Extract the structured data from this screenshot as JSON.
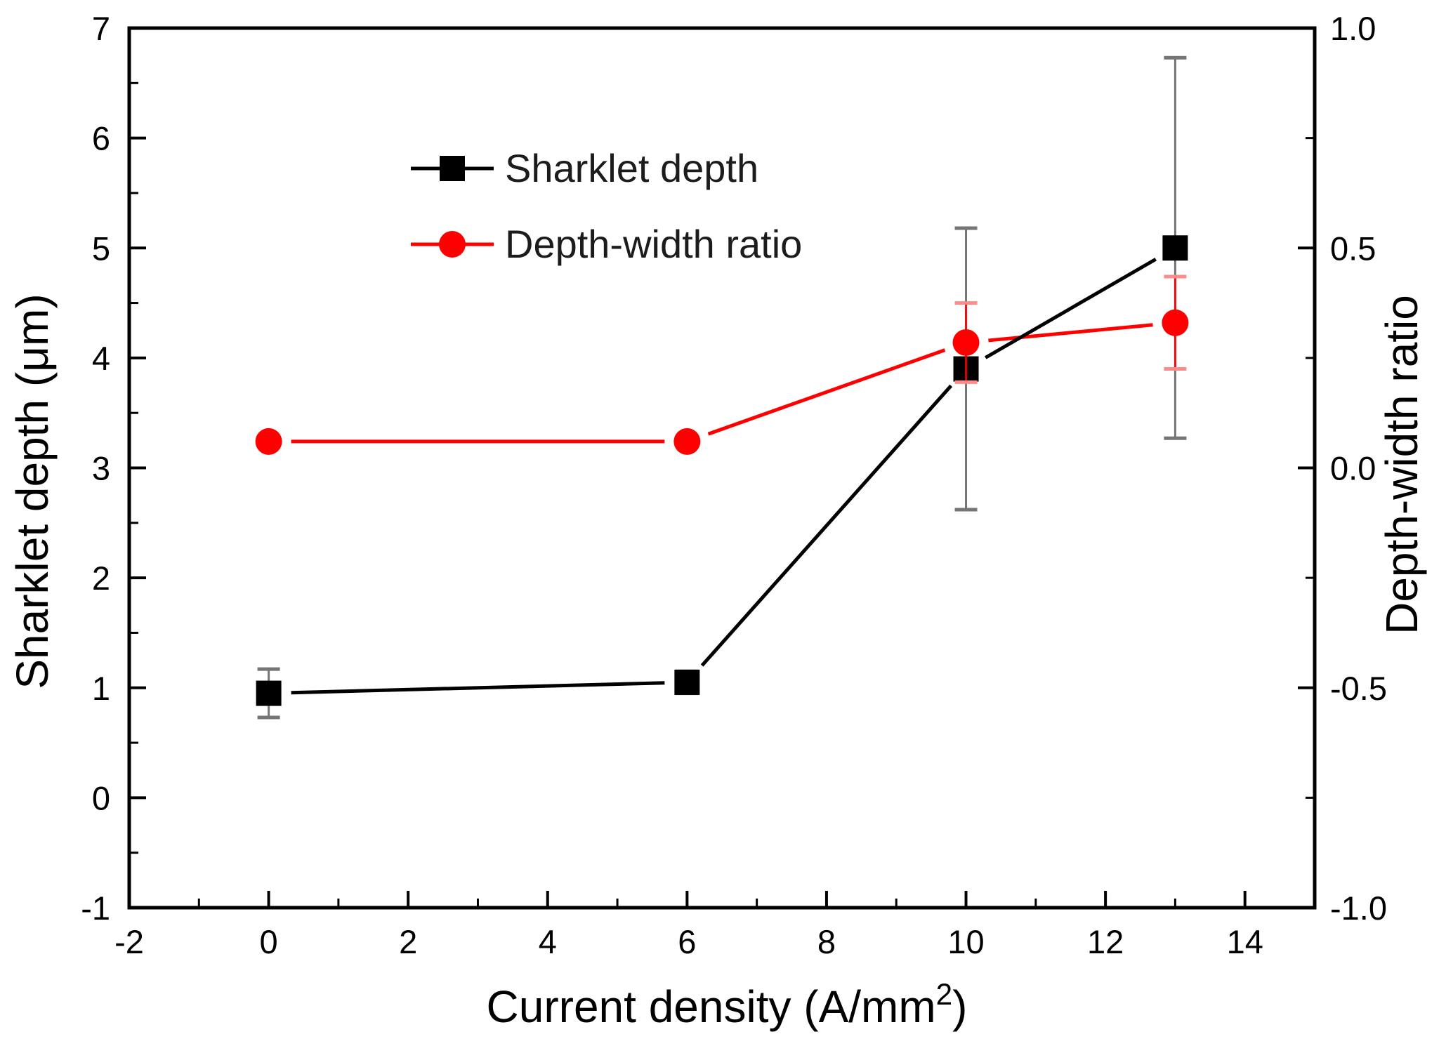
{
  "chart_data": {
    "type": "line",
    "title": "",
    "xlabel": {
      "text": "Current density (A/mm",
      "sup": "2",
      "suffix": ")"
    },
    "ylabel_left": "Sharklet depth (μm)",
    "ylabel_right": "Depth-width ratio",
    "x_axis": {
      "min": -2,
      "max": 15,
      "major_ticks": [
        -2,
        0,
        2,
        4,
        6,
        8,
        10,
        12,
        14
      ],
      "minor_step": 1
    },
    "y_axis_left": {
      "min": -1,
      "max": 7,
      "major_ticks": [
        -1,
        0,
        1,
        2,
        3,
        4,
        5,
        6,
        7
      ],
      "minor_step": 0.5
    },
    "y_axis_right": {
      "min": -1.0,
      "max": 1.0,
      "major_ticks": [
        -1.0,
        -0.5,
        0.0,
        0.5,
        1.0
      ],
      "labels": [
        "-1.0",
        "-0.5",
        "0.0",
        "0.5",
        "1.0"
      ],
      "minor_step": 0.25
    },
    "grid": false,
    "legend_position": "upper-left-inside",
    "series": [
      {
        "name": "Sharklet depth",
        "axis": "left",
        "marker": "square",
        "color": "#000000",
        "line_color": "#000000",
        "error_color": "#5e5e5e",
        "error_cap_color": "#757575",
        "x": [
          0,
          6,
          10,
          13
        ],
        "y": [
          0.95,
          1.05,
          3.9,
          5.0
        ],
        "y_err": [
          0.22,
          0.1,
          1.28,
          1.73
        ]
      },
      {
        "name": "Depth-width ratio",
        "axis": "right",
        "marker": "circle",
        "color": "#ff0000",
        "line_color": "#ff0000",
        "error_color": "#ff0000",
        "error_cap_color": "#ff8a8a",
        "x": [
          0,
          6,
          10,
          13
        ],
        "y": [
          0.06,
          0.06,
          0.285,
          0.33
        ],
        "y_err": [
          0,
          0,
          0.09,
          0.105
        ]
      }
    ]
  }
}
